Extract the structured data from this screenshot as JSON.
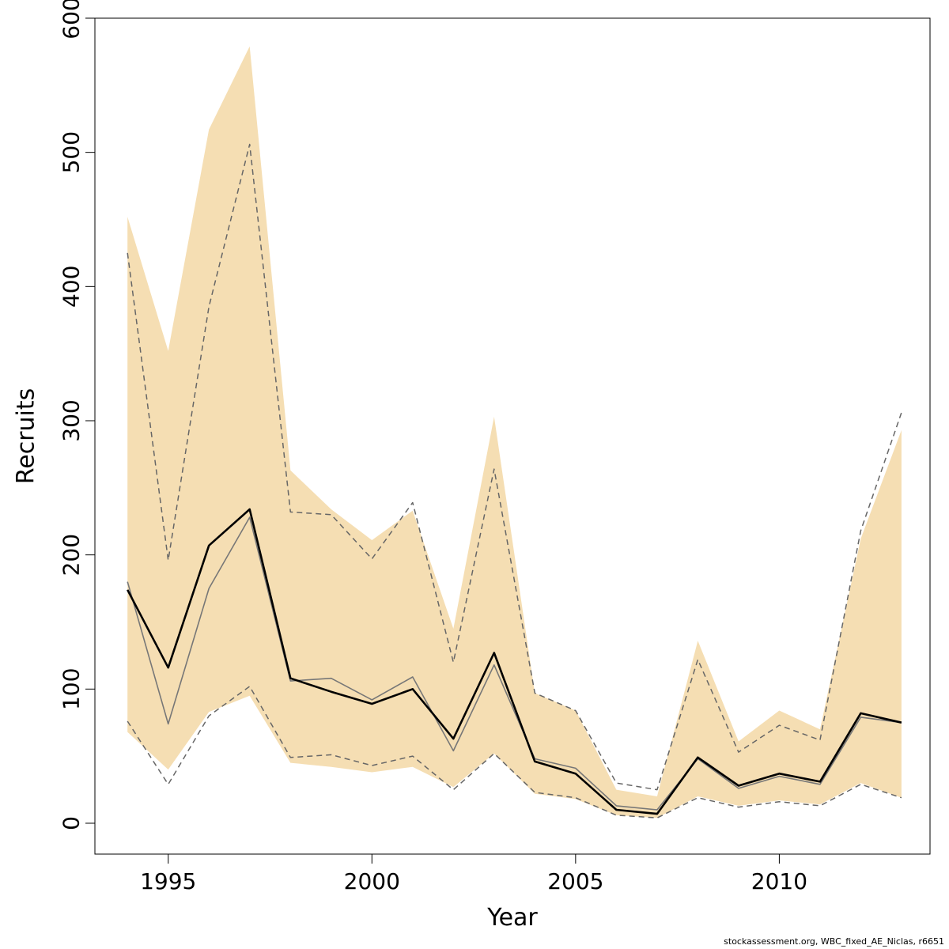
{
  "chart_data": {
    "type": "line",
    "xlabel": "Year",
    "ylabel": "Recruits",
    "xlim": [
      1993.2,
      2013.7
    ],
    "ylim": [
      -23,
      600
    ],
    "x_ticks": [
      1995,
      2000,
      2005,
      2010
    ],
    "y_ticks": [
      0,
      100,
      200,
      300,
      400,
      500,
      600
    ],
    "x": [
      1994,
      1995,
      1996,
      1997,
      1998,
      1999,
      2000,
      2001,
      2002,
      2003,
      2004,
      2005,
      2006,
      2007,
      2008,
      2009,
      2010,
      2011,
      2012,
      2013
    ],
    "band": {
      "upper": [
        452,
        352,
        517,
        579,
        263,
        234,
        211,
        233,
        145,
        303,
        97,
        84,
        25,
        20,
        136,
        61,
        84,
        70,
        212,
        293
      ],
      "lower": [
        68,
        40,
        83,
        95,
        45,
        42,
        38,
        42,
        27,
        52,
        22,
        18,
        6,
        4,
        20,
        13,
        17,
        14,
        30,
        19
      ],
      "color": "#f5deb3"
    },
    "series": [
      {
        "style": "solid-thick",
        "color": "#000000",
        "values": [
          174,
          116,
          207,
          234,
          108,
          98,
          89,
          100,
          63,
          127,
          46,
          37,
          10,
          7,
          49,
          28,
          37,
          31,
          82,
          75
        ]
      },
      {
        "style": "solid-thin",
        "color": "#777777",
        "values": [
          180,
          74,
          175,
          228,
          106,
          108,
          92,
          109,
          54,
          118,
          48,
          41,
          13,
          10,
          48,
          26,
          35,
          29,
          79,
          75
        ]
      },
      {
        "style": "dashed",
        "color": "#666666",
        "values": [
          425,
          196,
          385,
          506,
          232,
          230,
          197,
          239,
          120,
          264,
          97,
          84,
          30,
          25,
          122,
          53,
          73,
          62,
          218,
          306
        ]
      },
      {
        "style": "dashed",
        "color": "#666666",
        "values": [
          76,
          29,
          80,
          102,
          49,
          51,
          43,
          50,
          25,
          52,
          23,
          19,
          6,
          4,
          19,
          12,
          16,
          13,
          29,
          19
        ]
      }
    ]
  },
  "footer": "stockassessment.org, WBC_fixed_AE_Niclas, r6651"
}
